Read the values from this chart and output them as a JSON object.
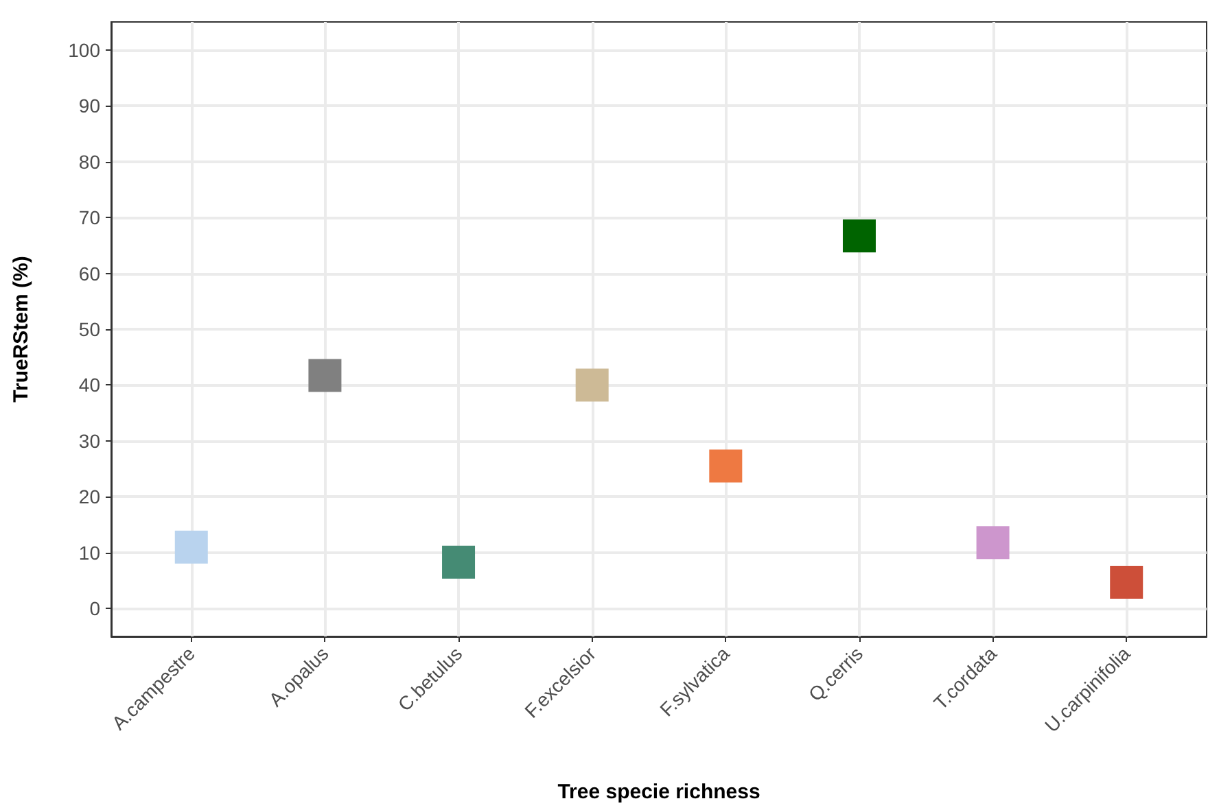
{
  "chart_data": {
    "type": "scatter",
    "xlabel": "Tree specie richness",
    "ylabel": "TrueRStem (%)",
    "categories": [
      "A.campestre",
      "A.opalus",
      "C.betulus",
      "F.excelsior",
      "F.sylvatica",
      "Q.cerris",
      "T.cordata",
      "U.carpinifolia"
    ],
    "values": [
      11.0,
      41.7,
      8.3,
      40.0,
      25.5,
      66.7,
      11.8,
      4.7
    ],
    "colors": [
      "#b9d3ee",
      "#808080",
      "#458b74",
      "#cdba96",
      "#ee7942",
      "#006400",
      "#cd96cd",
      "#cd4f39"
    ],
    "ylim": [
      -5,
      105
    ],
    "yticks": [
      0,
      10,
      20,
      30,
      40,
      50,
      60,
      70,
      80,
      90,
      100
    ],
    "grid": true,
    "marker": "square"
  }
}
